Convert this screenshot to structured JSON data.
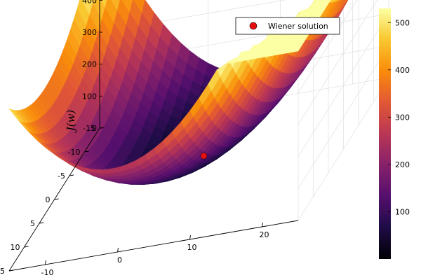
{
  "chart_data": {
    "type": "surface",
    "surface": {
      "function": "quadratic cost J(w) = 1.2*(w1-4)^2 + 0.8*(w2+4)^2 + 0.6*(w1-4)*(w2+4) + 2",
      "w1_range": [
        -15,
        25
      ],
      "w2_range": [
        -15,
        15
      ]
    },
    "zlabel": "J(w)",
    "z_ticks": [
      "0",
      "100",
      "200",
      "300",
      "400",
      "500"
    ],
    "w1_ticks": [
      "-10",
      "0",
      "10",
      "20"
    ],
    "w2_ticks": [
      "-15",
      "-10",
      "-5",
      "0",
      "5",
      "10",
      "15"
    ],
    "colorbar": {
      "colormap": "inferno",
      "ticks": [
        "100",
        "200",
        "300",
        "400",
        "500"
      ],
      "range": [
        0,
        530
      ]
    },
    "wiener_solution": {
      "w1": 4,
      "w2": -4,
      "J": 2,
      "label": "Wiener solution",
      "color": "#e8100f"
    },
    "legend_position": "top-right",
    "grid": true
  }
}
